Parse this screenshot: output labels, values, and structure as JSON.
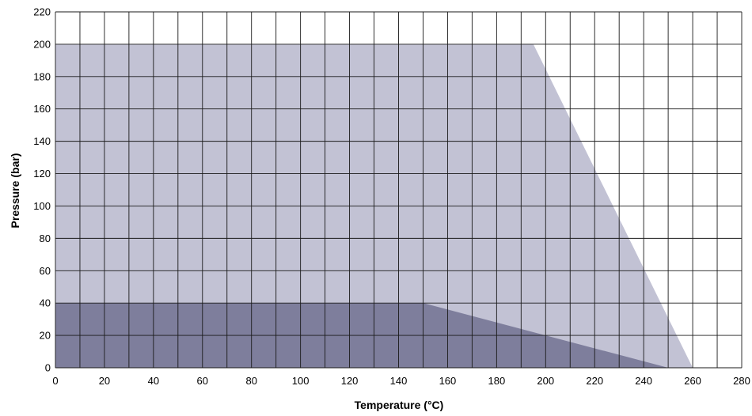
{
  "chart_data": {
    "type": "area",
    "title": "",
    "xlabel": "Temperature (°C)",
    "ylabel": "Pressure (bar)",
    "xlim": [
      0,
      280
    ],
    "ylim": [
      0,
      220
    ],
    "xticks": [
      0,
      20,
      40,
      60,
      80,
      100,
      120,
      140,
      160,
      180,
      200,
      220,
      240,
      260,
      280
    ],
    "yticks": [
      0,
      20,
      40,
      60,
      80,
      100,
      120,
      140,
      160,
      180,
      200,
      220
    ],
    "grid": true,
    "grid_x_step": 10,
    "grid_y_step": 20,
    "series": [
      {
        "color": "#c2c2d4",
        "points": [
          [
            0,
            0
          ],
          [
            0,
            200
          ],
          [
            195,
            200
          ],
          [
            260,
            0
          ]
        ]
      },
      {
        "color": "#7e7e9c",
        "points": [
          [
            0,
            0
          ],
          [
            0,
            40
          ],
          [
            150,
            40
          ],
          [
            250,
            0
          ]
        ]
      }
    ]
  }
}
